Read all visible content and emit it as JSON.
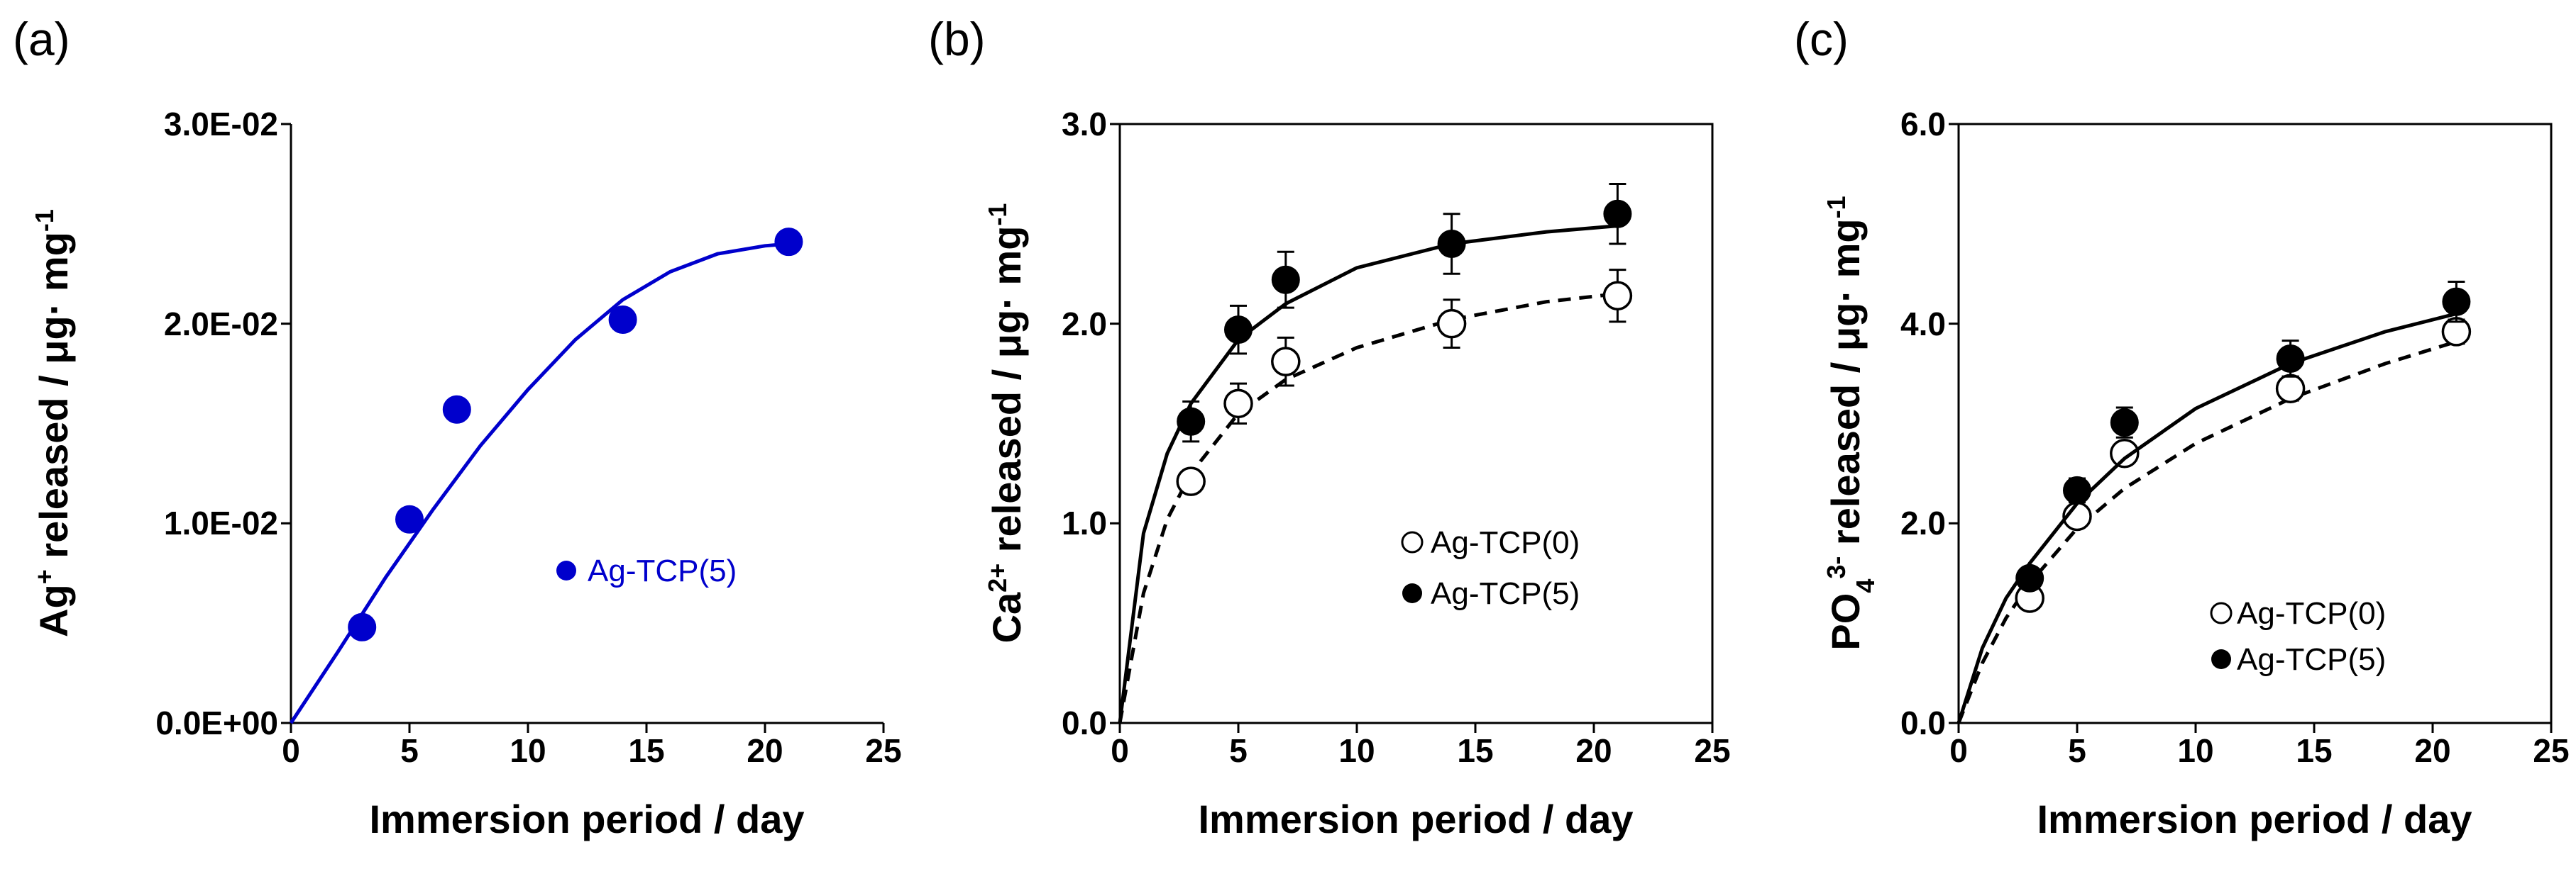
{
  "chart_data": [
    {
      "panel": "(a)",
      "type": "scatter",
      "title": "",
      "xlabel": "Immersion period / day",
      "ylabel": {
        "ion": "Ag",
        "charge": "+",
        "rest": " released / μg· mg",
        "exp": "-1"
      },
      "xlim": [
        0,
        25
      ],
      "ylim": [
        0,
        0.03
      ],
      "x_ticks": [
        "0",
        "5",
        "10",
        "15",
        "20",
        "25"
      ],
      "y_ticks": [
        "0.0E+00",
        "1.0E-02",
        "2.0E-02",
        "3.0E-02"
      ],
      "series": [
        {
          "name": "Ag-TCP(5)",
          "marker": "filled-circle",
          "color": "#0000cc",
          "x": [
            3,
            5,
            7,
            14,
            21
          ],
          "y": [
            0.0048,
            0.0102,
            0.0157,
            0.0202,
            0.0241
          ],
          "fit_curve": {
            "style": "solid",
            "x": [
              0,
              2,
              4,
              6,
              8,
              10,
              12,
              14,
              16,
              18,
              20,
              21
            ],
            "y": [
              0,
              0.0036,
              0.0073,
              0.0107,
              0.0139,
              0.0167,
              0.0192,
              0.0212,
              0.0226,
              0.0235,
              0.0239,
              0.024
            ]
          }
        }
      ],
      "legend_position": "center-right"
    },
    {
      "panel": "(b)",
      "type": "scatter",
      "title": "",
      "xlabel": "Immersion period / day",
      "ylabel": {
        "ion": "Ca",
        "charge": "2+",
        "rest": " released / μg· mg",
        "exp": "-1"
      },
      "xlim": [
        0,
        25
      ],
      "ylim": [
        0,
        3.0
      ],
      "x_ticks": [
        "0",
        "5",
        "10",
        "15",
        "20",
        "25"
      ],
      "y_ticks": [
        "0.0",
        "1.0",
        "2.0",
        "3.0"
      ],
      "series": [
        {
          "name": "Ag-TCP(0)",
          "marker": "open-circle",
          "color": "#000000",
          "x": [
            3,
            5,
            7,
            14,
            21
          ],
          "y": [
            1.21,
            1.6,
            1.81,
            2.0,
            2.14
          ],
          "error": [
            0.05,
            0.1,
            0.12,
            0.12,
            0.13
          ],
          "fit_curve": {
            "style": "dashed",
            "x": [
              0,
              1,
              2,
              3,
              5,
              7,
              10,
              14,
              18,
              21
            ],
            "y": [
              0,
              0.65,
              1.02,
              1.25,
              1.55,
              1.72,
              1.88,
              2.02,
              2.11,
              2.15
            ]
          }
        },
        {
          "name": "Ag-TCP(5)",
          "marker": "filled-circle",
          "color": "#000000",
          "x": [
            3,
            5,
            7,
            14,
            21
          ],
          "y": [
            1.51,
            1.97,
            2.22,
            2.4,
            2.55
          ],
          "error": [
            0.1,
            0.12,
            0.14,
            0.15,
            0.15
          ],
          "fit_curve": {
            "style": "solid",
            "x": [
              0,
              1,
              2,
              3,
              5,
              7,
              10,
              14,
              18,
              21
            ],
            "y": [
              0,
              0.95,
              1.35,
              1.6,
              1.92,
              2.1,
              2.28,
              2.4,
              2.46,
              2.49
            ]
          }
        }
      ],
      "legend_position": "lower-right"
    },
    {
      "panel": "(c)",
      "type": "scatter",
      "title": "",
      "xlabel": "Immersion period / day",
      "ylabel": {
        "ion": "PO",
        "sub": "4",
        "charge": "3-",
        "rest": " released / μg· mg",
        "exp": "-1"
      },
      "xlim": [
        0,
        25
      ],
      "ylim": [
        0,
        6.0
      ],
      "x_ticks": [
        "0",
        "5",
        "10",
        "15",
        "20",
        "25"
      ],
      "y_ticks": [
        "0.0",
        "2.0",
        "4.0",
        "6.0"
      ],
      "series": [
        {
          "name": "Ag-TCP(0)",
          "marker": "open-circle",
          "color": "#000000",
          "x": [
            3,
            5,
            7,
            14,
            21
          ],
          "y": [
            1.25,
            2.07,
            2.7,
            3.35,
            3.92
          ],
          "error": [
            0.05,
            0.08,
            0.1,
            0.12,
            0.12
          ],
          "fit_curve": {
            "style": "dashed",
            "x": [
              0,
              1,
              2,
              3,
              5,
              7,
              10,
              14,
              18,
              21
            ],
            "y": [
              0,
              0.6,
              1.05,
              1.4,
              1.95,
              2.35,
              2.8,
              3.25,
              3.6,
              3.82
            ]
          }
        },
        {
          "name": "Ag-TCP(5)",
          "marker": "filled-circle",
          "color": "#000000",
          "x": [
            3,
            5,
            7,
            14,
            21
          ],
          "y": [
            1.45,
            2.33,
            3.01,
            3.65,
            4.22
          ],
          "error": [
            0.1,
            0.12,
            0.15,
            0.18,
            0.2
          ],
          "fit_curve": {
            "style": "solid",
            "x": [
              0,
              1,
              2,
              3,
              5,
              7,
              10,
              14,
              18,
              21
            ],
            "y": [
              0,
              0.75,
              1.25,
              1.6,
              2.2,
              2.65,
              3.15,
              3.6,
              3.92,
              4.1
            ]
          }
        }
      ],
      "legend_position": "lower-right"
    }
  ]
}
